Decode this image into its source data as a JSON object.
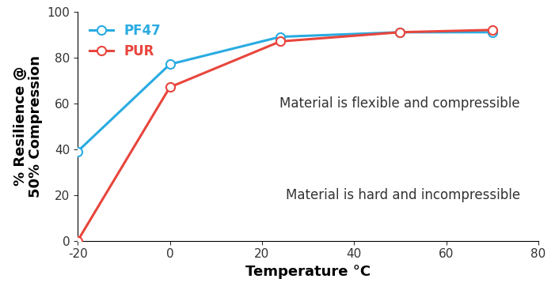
{
  "chart_data": {
    "type": "line",
    "x_label": "Temperature °C",
    "y_label": "% Resilience @\n50% Compression",
    "x": [
      -20,
      0,
      24,
      50,
      70
    ],
    "series": [
      {
        "name": "PF47",
        "color": "#29abe2",
        "values": [
          39,
          77,
          89,
          91,
          91
        ],
        "marker": "o",
        "line_style": "solid"
      },
      {
        "name": "PUR",
        "color": "#e8453c",
        "values": [
          0,
          67,
          87,
          91,
          92
        ],
        "marker": "o",
        "line_style": "solid"
      }
    ],
    "xlim": [
      -20,
      80
    ],
    "xticks": [
      -20,
      0,
      20,
      40,
      60,
      80
    ],
    "ylim": [
      0,
      100
    ],
    "yticks": [
      0,
      20,
      40,
      60,
      80,
      100
    ],
    "annotations": [
      "Material is flexible and compressible",
      "Material is hard and incompressible"
    ],
    "legend": "upper left",
    "grid": false
  }
}
